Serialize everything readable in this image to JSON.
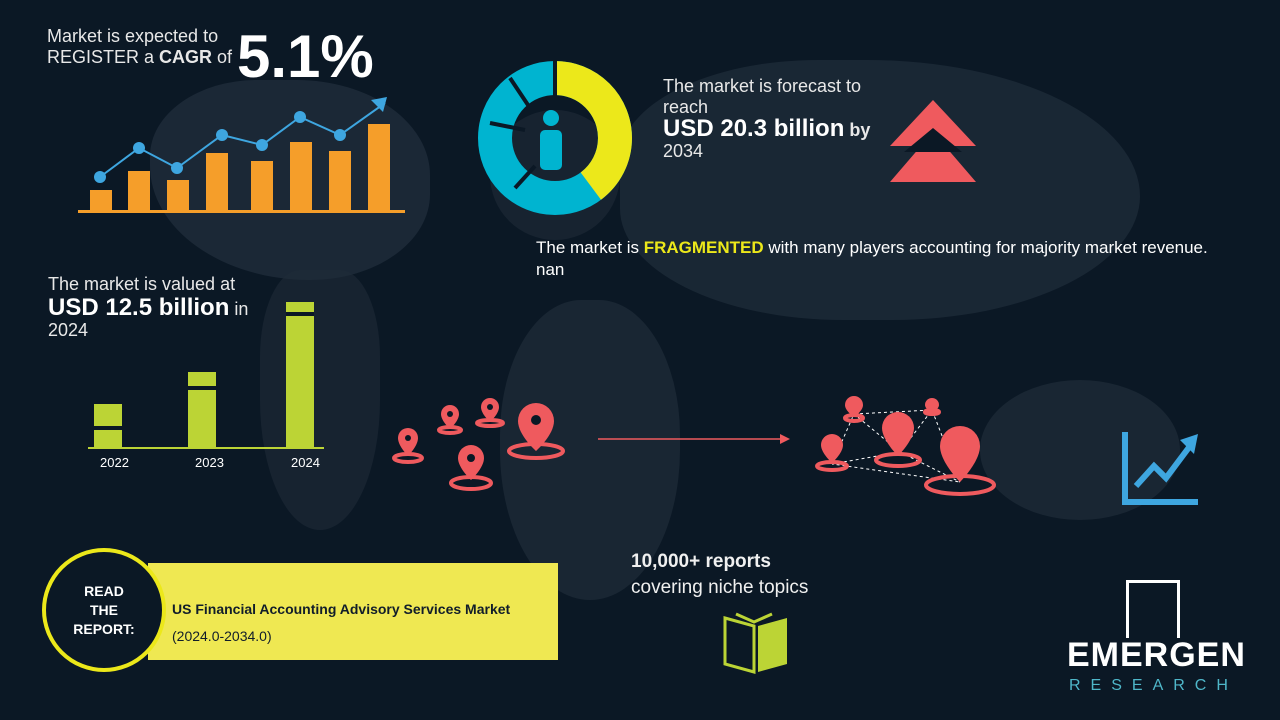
{
  "cagr": {
    "line1": "Market is expected to",
    "line2_pre": "REGISTER a ",
    "line2_bold": "CAGR",
    "line2_post": " of",
    "value": "5.1%"
  },
  "forecast": {
    "line1": "The market is forecast to",
    "line2": "reach",
    "value": "USD 20.3 billion",
    "by": "by",
    "year": "2034"
  },
  "fragmented": {
    "pre": "The market is ",
    "highlight": "FRAGMENTED",
    "post": " with many players accounting for majority market revenue. nan"
  },
  "valued": {
    "line1": "The market is valued at",
    "value": "USD 12.5 billion",
    "in": "in",
    "year": "2024"
  },
  "bar_years": [
    "2022",
    "2023",
    "2024"
  ],
  "reports": {
    "line1": "10,000+ reports",
    "line2": "covering niche topics"
  },
  "read": {
    "circle": [
      "READ",
      "THE",
      "REPORT:"
    ],
    "title": "US Financial Accounting Advisory Services Market",
    "period": "(2024.0-2034.0)"
  },
  "logo": {
    "name": "EMERGEN",
    "sub": "RESEARCH"
  },
  "colors": {
    "background": "#0b1825",
    "orange": "#f59e2a",
    "blue": "#3ea6e0",
    "yellow": "#ece81a",
    "green": "#bcd435",
    "red": "#ef5a5e",
    "banner": "#efe852"
  }
}
